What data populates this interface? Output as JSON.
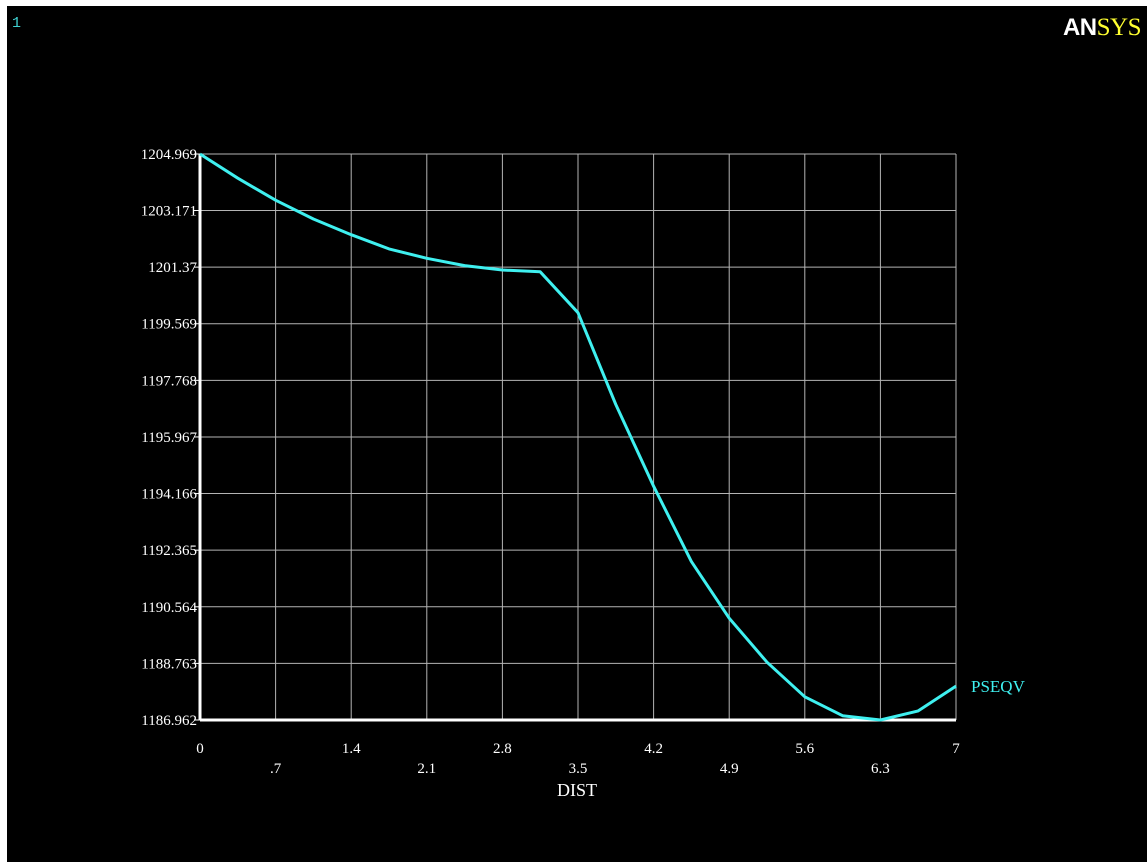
{
  "window_number": "1",
  "brand": {
    "prefix": "AN",
    "suffix": "SYS"
  },
  "colors": {
    "background": "#000000",
    "grid": "#b4b4b4",
    "axis": "#ffffff",
    "curve": "#3ff0f0",
    "label": "#3ff0f0",
    "text": "#ffffff",
    "logo_prefix": "#ffffff",
    "logo_suffix": "#ffff30"
  },
  "chart_data": {
    "type": "line",
    "xlabel": "DIST",
    "ylabel": "",
    "xlim": [
      0,
      7
    ],
    "ylim": [
      1186.962,
      1204.969
    ],
    "x_ticks": [
      0,
      0.7,
      1.4,
      2.1,
      2.8,
      3.5,
      4.2,
      4.9,
      5.6,
      6.3,
      7
    ],
    "x_tick_labels": [
      "0",
      ".7",
      "1.4",
      "2.1",
      "2.8",
      "3.5",
      "4.2",
      "4.9",
      "5.6",
      "6.3",
      "7"
    ],
    "y_ticks": [
      1186.962,
      1188.763,
      1190.564,
      1192.365,
      1194.166,
      1195.967,
      1197.768,
      1199.569,
      1201.37,
      1203.171,
      1204.969
    ],
    "y_tick_labels": [
      "1186.962",
      "1188.763",
      "1190.564",
      "1192.365",
      "1194.166",
      "1195.967",
      "1197.768",
      "1199.569",
      "1201.37",
      "1203.171",
      "1204.969"
    ],
    "grid": true,
    "legend_position": "right",
    "series": [
      {
        "name": "PSEQV",
        "x": [
          0,
          0.35,
          0.7,
          1.05,
          1.4,
          1.75,
          2.1,
          2.45,
          2.8,
          3.15,
          3.5,
          3.85,
          4.2,
          4.55,
          4.9,
          5.25,
          5.6,
          5.95,
          6.3,
          6.65,
          7
        ],
        "y": [
          1204.969,
          1204.2,
          1203.5,
          1202.9,
          1202.4,
          1201.95,
          1201.65,
          1201.42,
          1201.28,
          1201.22,
          1199.92,
          1197.0,
          1194.4,
          1192.0,
          1190.2,
          1188.8,
          1187.7,
          1187.1,
          1186.962,
          1187.25,
          1188.04
        ]
      }
    ]
  }
}
